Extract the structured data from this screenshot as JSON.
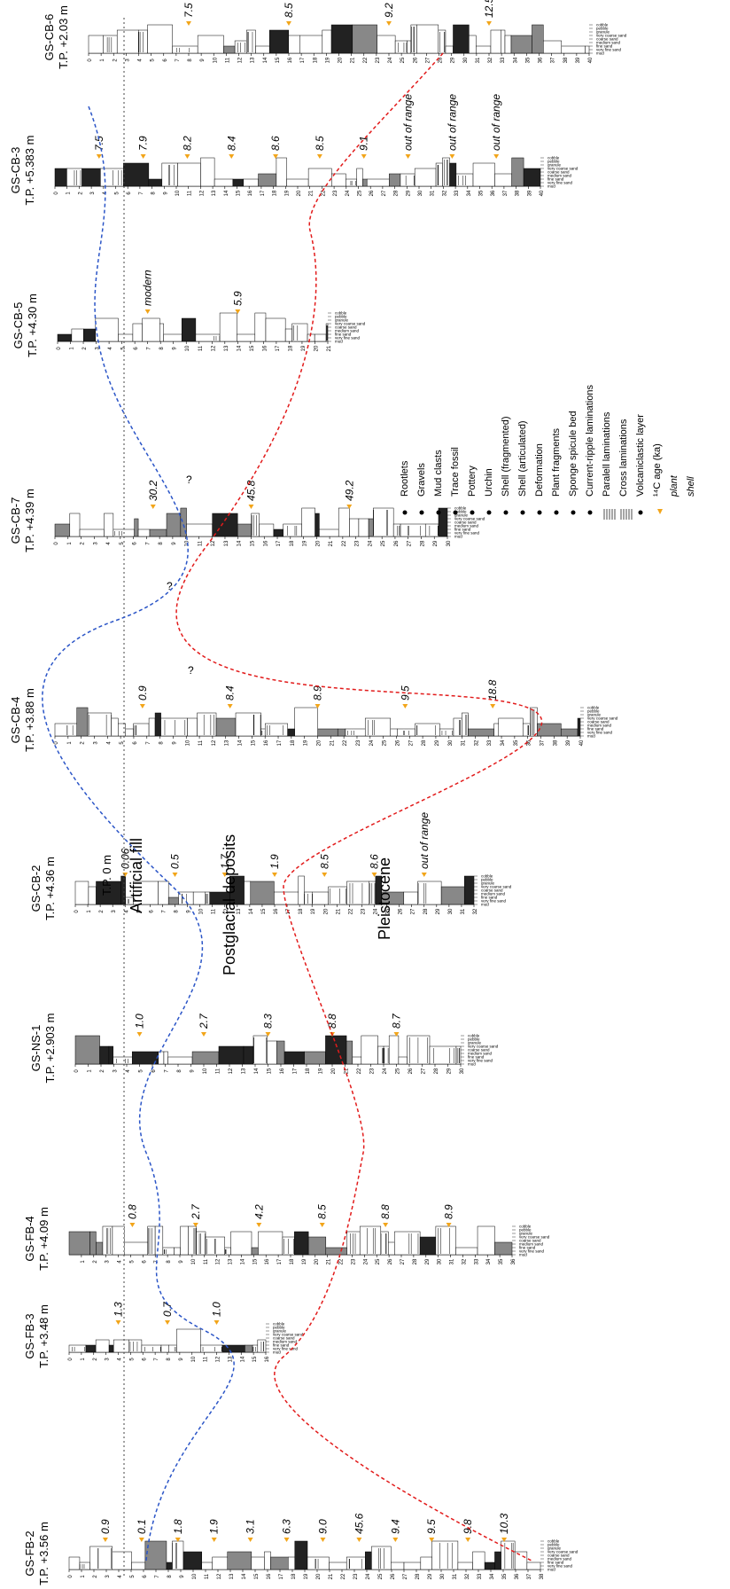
{
  "columns": [
    {
      "id": "GS-CB-6",
      "name": "GS-CB-6",
      "tp": "T.P. +2.03 m",
      "ticks": [
        "0",
        "1",
        "2",
        "3",
        "4",
        "5",
        "6",
        "7",
        "8",
        "9",
        "10",
        "11",
        "12",
        "13",
        "14",
        "15",
        "16",
        "17",
        "18",
        "19",
        "20",
        "21",
        "22",
        "23",
        "24",
        "25",
        "26",
        "27",
        "28",
        "29",
        "30",
        "31",
        "32",
        "33",
        "34",
        "35",
        "36",
        "37",
        "38",
        "39",
        "40"
      ],
      "ages": [
        "7.5",
        "8.5",
        "9.2",
        "12.5"
      ],
      "grain_legend": [
        "mud",
        "very fine sand",
        "fine sand",
        "medium sand",
        "coarse sand",
        "very coarse sand",
        "granule",
        "pebble",
        "cobble"
      ]
    },
    {
      "id": "GS-CB-3",
      "name": "GS-CB-3",
      "tp": "T.P. +5.383 m",
      "ticks": [
        "0",
        "1",
        "2",
        "3",
        "4",
        "5",
        "6",
        "7",
        "8",
        "9",
        "10",
        "11",
        "12",
        "13",
        "14",
        "15",
        "16",
        "17",
        "18",
        "19",
        "20",
        "21",
        "22",
        "23",
        "24",
        "25",
        "26",
        "27",
        "28",
        "29",
        "30",
        "31",
        "32",
        "33",
        "34",
        "35",
        "36",
        "37",
        "38",
        "39",
        "40"
      ],
      "ages": [
        "7.5",
        "7.9",
        "8.2",
        "8.4",
        "8.6",
        "8.5",
        "9.1",
        "out of range",
        "out of range",
        "out of range"
      ],
      "grain_legend": [
        "mud",
        "very fine sand",
        "fine sand",
        "medium sand",
        "coarse sand",
        "very coarse sand",
        "granule",
        "pebble",
        "cobble"
      ]
    },
    {
      "id": "GS-CB-5",
      "name": "GS-CB-5",
      "tp": "T.P. +4.30 m",
      "ticks": [
        "0",
        "1",
        "2",
        "3",
        "4",
        "5",
        "6",
        "7",
        "8",
        "9",
        "10",
        "11",
        "12",
        "13",
        "14",
        "15",
        "16",
        "17",
        "18",
        "19",
        "20",
        "21"
      ],
      "ages": [
        "modern",
        "5.9"
      ],
      "grain_legend": [
        "mud",
        "very fine sand",
        "fine sand",
        "medium sand",
        "coarse sand",
        "very coarse sand",
        "granule",
        "pebble",
        "cobble"
      ]
    },
    {
      "id": "GS-CB-7",
      "name": "GS-CB-7",
      "tp": "T.P. +4.39 m",
      "ticks": [
        "0",
        "1",
        "2",
        "3",
        "4",
        "5",
        "6",
        "7",
        "8",
        "9",
        "10",
        "11",
        "12",
        "13",
        "14",
        "15",
        "16",
        "17",
        "18",
        "19",
        "20",
        "21",
        "22",
        "23",
        "24",
        "25",
        "26",
        "27",
        "28",
        "29",
        "30"
      ],
      "ages": [
        "30.2",
        "45.8",
        "49.2"
      ],
      "grain_legend": [
        "mud",
        "very fine sand",
        "fine sand",
        "medium sand",
        "coarse sand",
        "very coarse sand",
        "granule",
        "pebble",
        "cobble"
      ]
    },
    {
      "id": "GS-CB-4",
      "name": "GS-CB-4",
      "tp": "T.P. +3.88 m",
      "ticks": [
        "0",
        "1",
        "2",
        "3",
        "4",
        "5",
        "6",
        "7",
        "8",
        "9",
        "10",
        "11",
        "12",
        "13",
        "14",
        "15",
        "16",
        "17",
        "18",
        "19",
        "20",
        "21",
        "22",
        "23",
        "24",
        "25",
        "26",
        "27",
        "28",
        "29",
        "30",
        "31",
        "32",
        "33",
        "34",
        "35",
        "36",
        "37",
        "38",
        "39",
        "40"
      ],
      "ages": [
        "0.9",
        "8.4",
        "8.9",
        "9.5",
        "18.8"
      ],
      "grain_legend": [
        "mud",
        "very fine sand",
        "fine sand",
        "medium sand",
        "coarse sand",
        "very coarse sand",
        "granule",
        "pebble",
        "cobble"
      ]
    },
    {
      "id": "GS-CB-2",
      "name": "GS-CB-2",
      "tp": "T.P. +4.36 m",
      "ticks": [
        "0",
        "1",
        "2",
        "3",
        "4",
        "5",
        "6",
        "7",
        "8",
        "9",
        "10",
        "11",
        "12",
        "13",
        "14",
        "15",
        "16",
        "17",
        "18",
        "19",
        "20",
        "21",
        "22",
        "23",
        "24",
        "25",
        "26",
        "27",
        "28",
        "29",
        "30",
        "31",
        "32"
      ],
      "ages": [
        "0.06",
        "0.5",
        "1.7",
        "1.9",
        "8.5",
        "8.6",
        "out of range"
      ],
      "grain_legend": [
        "mud",
        "very fine sand",
        "fine sand",
        "medium sand",
        "coarse sand",
        "very coarse sand",
        "granule",
        "pebble",
        "cobble"
      ]
    },
    {
      "id": "GS-NS-1",
      "name": "GS-NS-1",
      "tp": "T.P. +2.903 m",
      "ticks": [
        "0",
        "1",
        "2",
        "3",
        "4",
        "5",
        "6",
        "7",
        "8",
        "9",
        "10",
        "11",
        "12",
        "13",
        "14",
        "15",
        "16",
        "17",
        "18",
        "19",
        "20",
        "21",
        "22",
        "23",
        "24",
        "25",
        "26",
        "27",
        "28",
        "29",
        "30"
      ],
      "ages": [
        "1.0",
        "2.7",
        "8.3",
        "8.8",
        "8.7"
      ],
      "grain_legend": [
        "mud",
        "very fine sand",
        "fine sand",
        "medium sand",
        "coarse sand",
        "very coarse sand",
        "granule",
        "pebble",
        "cobble"
      ]
    },
    {
      "id": "GS-FB-4",
      "name": "GS-FB-4",
      "tp": "T.P. +4.09 m",
      "ticks": [
        "1",
        "2",
        "3",
        "4",
        "5",
        "6",
        "7",
        "8",
        "9",
        "10",
        "11",
        "12",
        "13",
        "14",
        "15",
        "16",
        "17",
        "18",
        "19",
        "20",
        "21",
        "22",
        "23",
        "24",
        "25",
        "26",
        "27",
        "28",
        "29",
        "30",
        "31",
        "32",
        "33",
        "34",
        "35",
        "36"
      ],
      "ages": [
        "0.8",
        "2.7",
        "4.2",
        "8.5",
        "8.8",
        "8.9"
      ],
      "grain_legend": [
        "mud",
        "very fine sand",
        "fine sand",
        "medium sand",
        "coarse sand",
        "very coarse sand",
        "granule",
        "pebble",
        "cobble"
      ]
    },
    {
      "id": "GS-FB-3",
      "name": "GS-FB-3",
      "tp": "T.P. +3.48 m",
      "ticks": [
        "0",
        "1",
        "2",
        "3",
        "4",
        "5",
        "6",
        "7",
        "8",
        "9",
        "10",
        "11",
        "12",
        "13",
        "14",
        "15",
        "16"
      ],
      "ages": [
        "1.3",
        "0.7",
        "1.0"
      ],
      "grain_legend": [
        "mud",
        "very fine sand",
        "fine sand",
        "medium sand",
        "coarse sand",
        "very coarse sand",
        "granule",
        "pebble",
        "cobble"
      ]
    },
    {
      "id": "GS-FB-2",
      "name": "GS-FB-2",
      "tp": "T.P. +3.56 m",
      "ticks": [
        "0",
        "1",
        "2",
        "3",
        "4",
        "5",
        "6",
        "7",
        "8",
        "9",
        "10",
        "11",
        "12",
        "13",
        "14",
        "15",
        "16",
        "17",
        "18",
        "19",
        "20",
        "21",
        "22",
        "23",
        "24",
        "25",
        "26",
        "27",
        "28",
        "29",
        "30",
        "31",
        "32",
        "33",
        "34",
        "35",
        "36",
        "37",
        "38"
      ],
      "ages": [
        "0.9",
        "0.1",
        "1.8",
        "1.9",
        "3.1",
        "6.3",
        "9.0",
        "45.6",
        "9.4",
        "9.5",
        "9.8",
        "10.3"
      ],
      "grain_legend": [
        "mud",
        "very fine sand",
        "fine sand",
        "medium sand",
        "coarse sand",
        "very coarse sand",
        "granule",
        "pebble",
        "cobble"
      ]
    }
  ],
  "zones": {
    "tp0": "T.P. 0 m",
    "artificial": "Artificial fill",
    "postglacial": "Postglacial deposits",
    "pleistocene": "Pleistocene"
  },
  "question_marks": [
    "?",
    "?",
    "?"
  ],
  "legend": {
    "items": [
      {
        "label": "Rootlets",
        "symbol": "rootlet"
      },
      {
        "label": "Gravels",
        "symbol": "gravel"
      },
      {
        "label": "Mud clasts",
        "symbol": "mudclast"
      },
      {
        "label": "Trace fossil",
        "symbol": "trace"
      },
      {
        "label": "Pottery",
        "symbol": "pottery"
      },
      {
        "label": "Urchin",
        "symbol": "urchin"
      },
      {
        "label": "Shell (fragmented)",
        "symbol": "shellfrag"
      },
      {
        "label": "Shell (articulated)",
        "symbol": "shellart"
      },
      {
        "label": "Deformation",
        "symbol": "deform"
      },
      {
        "label": "Plant fragments",
        "symbol": "plant"
      },
      {
        "label": "Sponge spicule bed",
        "symbol": "sponge"
      },
      {
        "label": "Current-ripple laminations",
        "symbol": "ripple"
      },
      {
        "label": "Paralell laminations",
        "symbol": "parallel"
      },
      {
        "label": "Cross laminations",
        "symbol": "cross"
      },
      {
        "label": "Volcaniclastic layer",
        "symbol": "volc"
      },
      {
        "label": "¹⁴C age (ka)",
        "symbol": "age"
      },
      {
        "label": "plant",
        "symbol": "none"
      },
      {
        "label": "shell",
        "symbol": "none"
      }
    ]
  },
  "colors": {
    "blue_line": "#2b55c7",
    "red_line": "#e21b1b",
    "age_marker": "#f2a51a",
    "ink": "#000000"
  }
}
